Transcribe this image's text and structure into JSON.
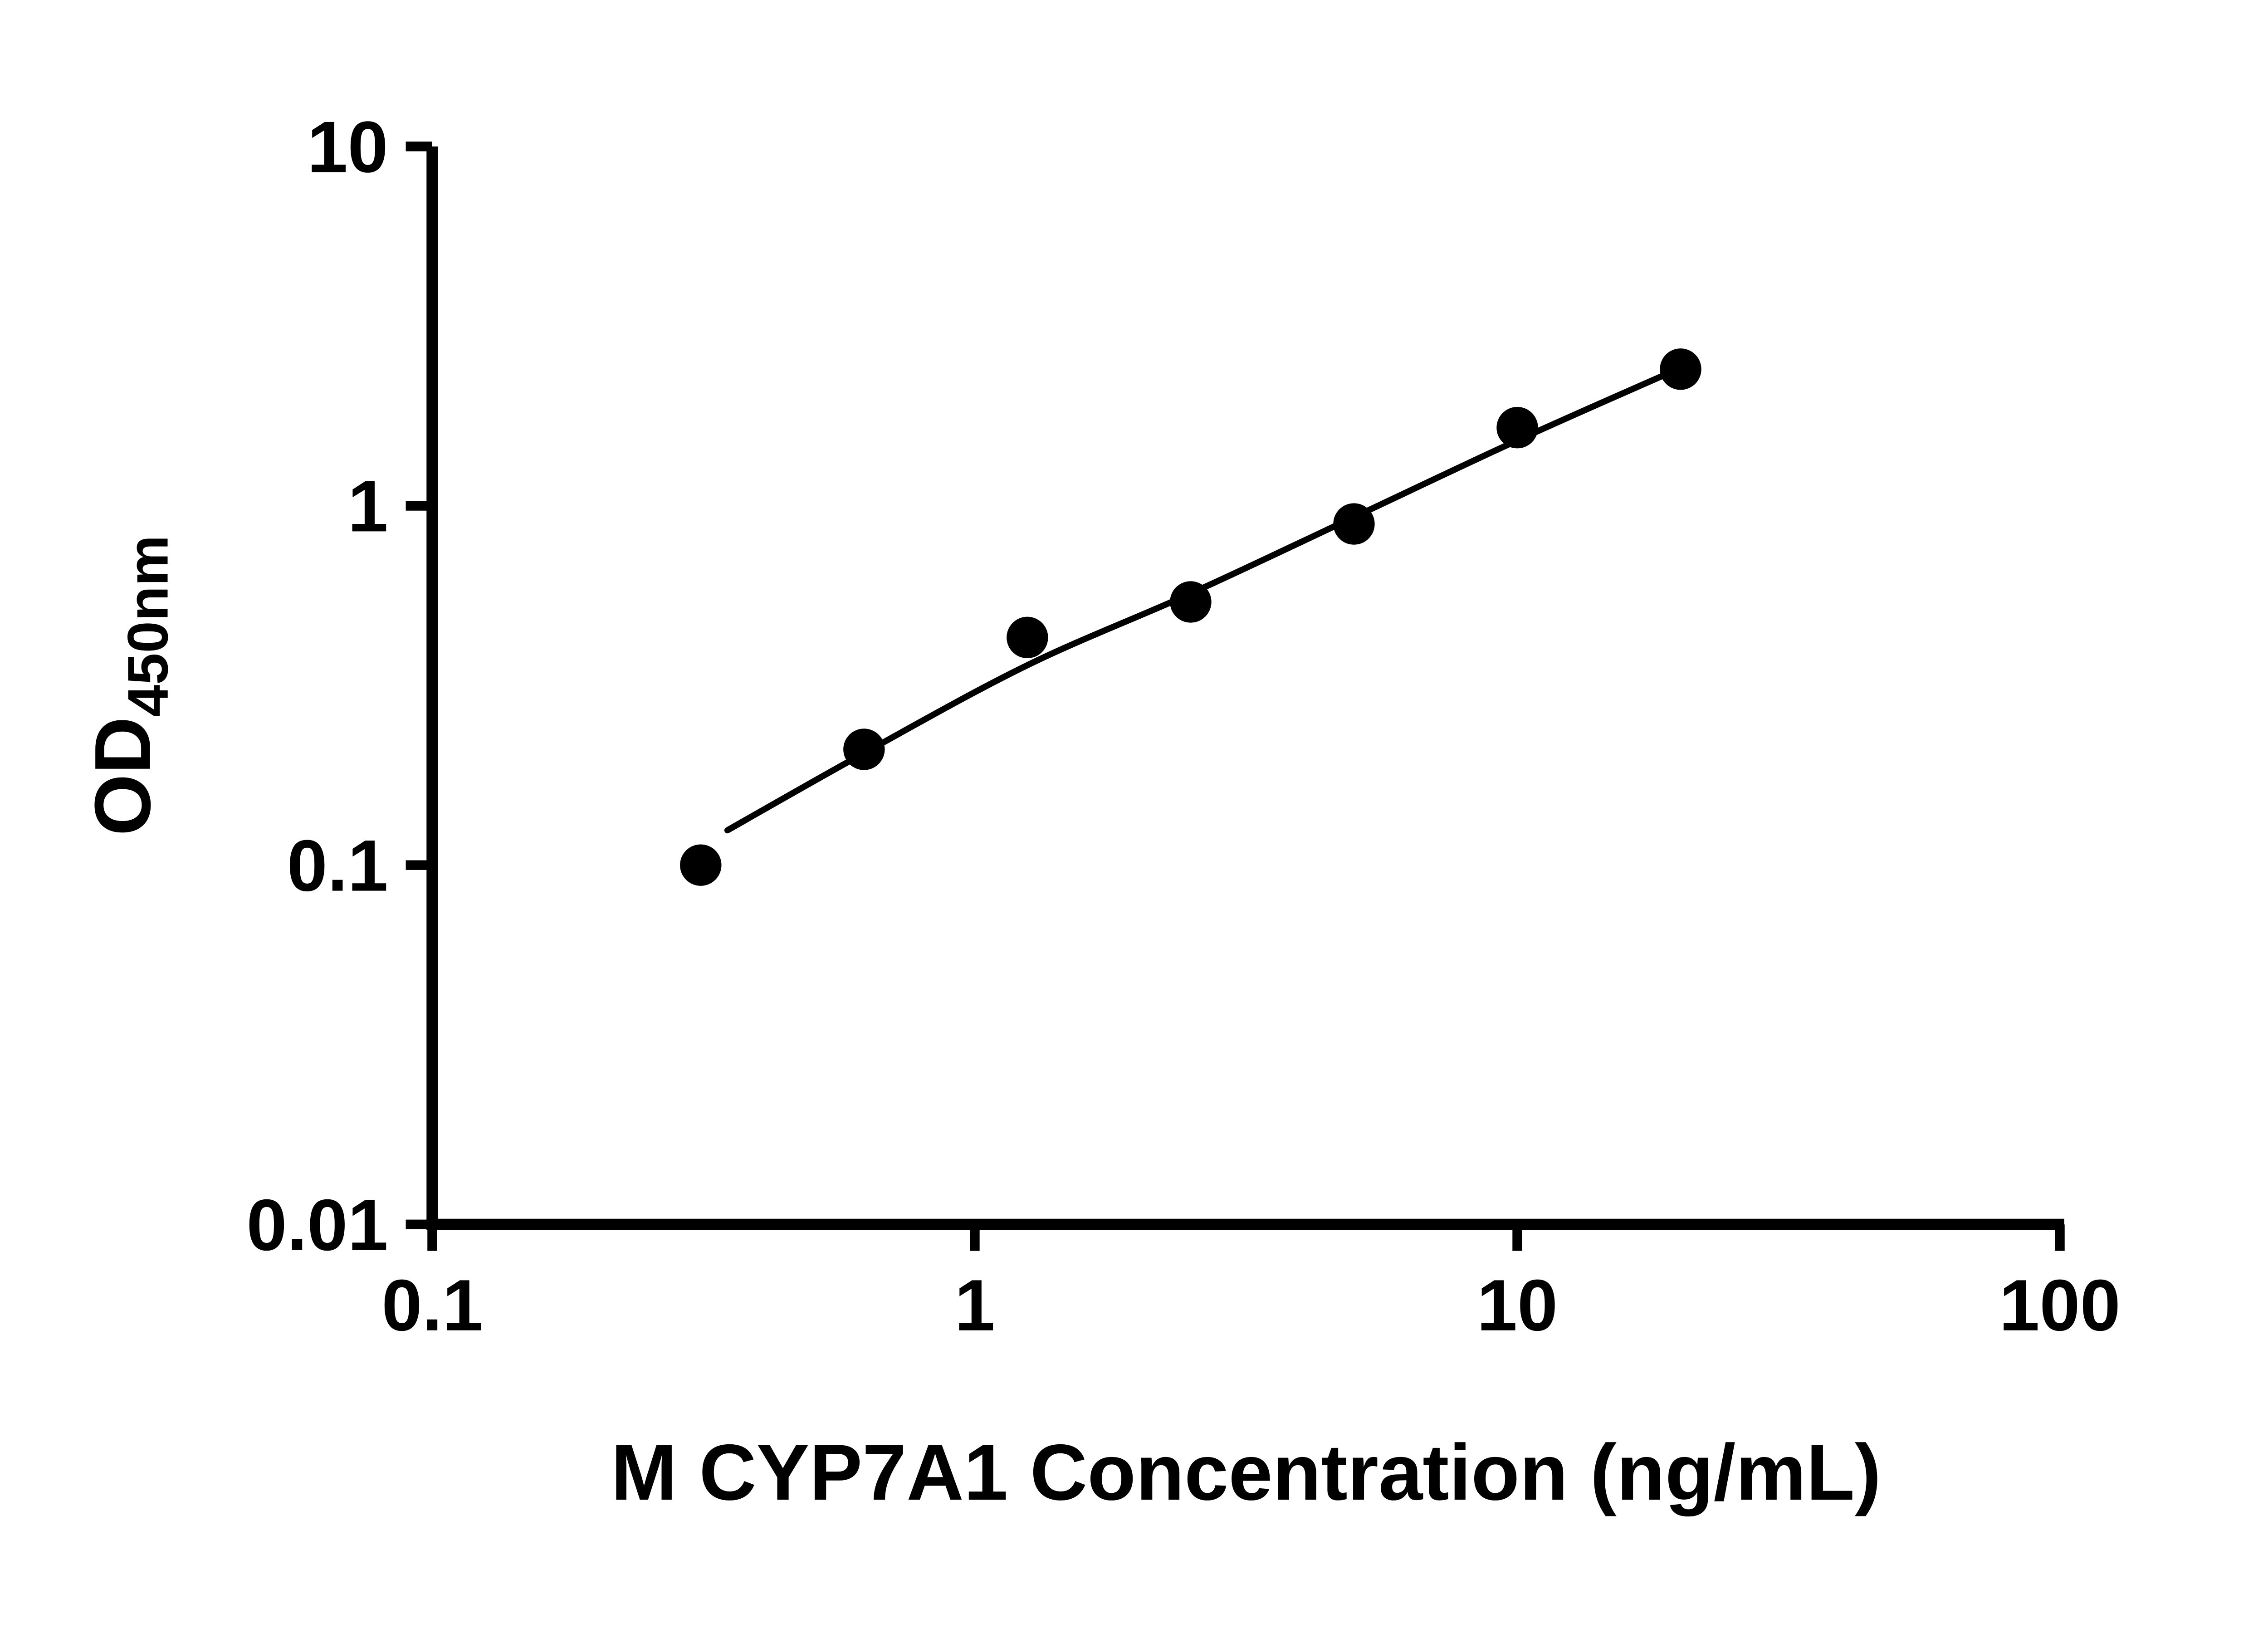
{
  "chart_data": {
    "type": "scatter",
    "title": "",
    "xlabel": "M CYP7A1 Concentration (ng/mL)",
    "ylabel": {
      "main": "OD",
      "sub": "450nm"
    },
    "x_scale": "log",
    "y_scale": "log",
    "xlim": [
      0.1,
      100
    ],
    "ylim": [
      0.01,
      10
    ],
    "x_ticks": [
      0.1,
      1,
      10,
      100
    ],
    "x_tick_labels": [
      "0.1",
      "1",
      "10",
      "100"
    ],
    "y_ticks": [
      0.01,
      0.1,
      1,
      10
    ],
    "y_tick_labels": [
      "0.01",
      "0.1",
      "1",
      "10"
    ],
    "grid": false,
    "legend": false,
    "marker_color": "#000000",
    "line_color": "#000000",
    "background": "#ffffff",
    "points": {
      "x": [
        0.3125,
        0.625,
        1.25,
        2.5,
        5,
        10,
        20
      ],
      "y": [
        0.1,
        0.21,
        0.43,
        0.54,
        0.89,
        1.65,
        2.4
      ]
    },
    "trend_line": {
      "x": [
        0.35,
        0.625,
        1.25,
        2.5,
        5,
        10,
        20
      ],
      "y": [
        0.125,
        0.205,
        0.36,
        0.57,
        0.93,
        1.52,
        2.42
      ]
    }
  }
}
